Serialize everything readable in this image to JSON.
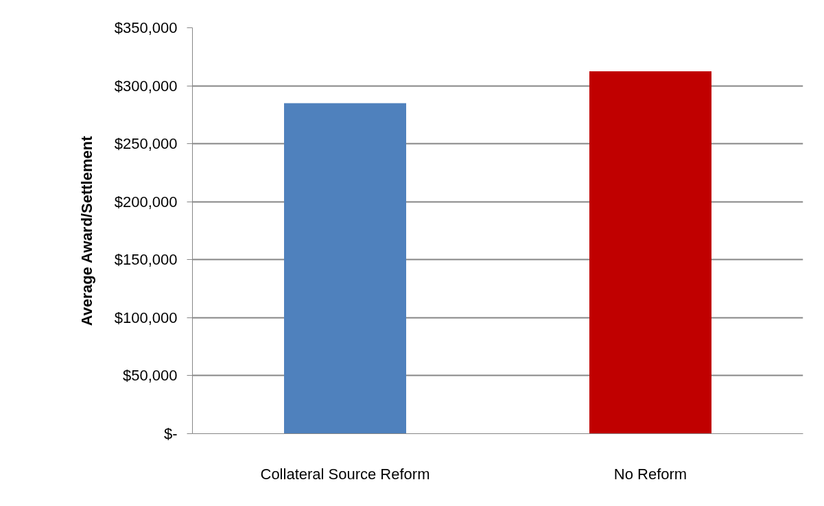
{
  "chart_data": {
    "type": "bar",
    "ylabel": "Average Award/Settlement",
    "categories": [
      "Collateral Source Reform",
      "No Reform"
    ],
    "values": [
      285000,
      312500
    ],
    "colors": [
      "#4f81bd",
      "#c00000"
    ],
    "ylim": [
      0,
      350000
    ],
    "yticks": [
      {
        "value": 0,
        "label": "$-"
      },
      {
        "value": 50000,
        "label": "$50,000"
      },
      {
        "value": 100000,
        "label": "$100,000"
      },
      {
        "value": 150000,
        "label": "$150,000"
      },
      {
        "value": 200000,
        "label": "$200,000"
      },
      {
        "value": 250000,
        "label": "$250,000"
      },
      {
        "value": 300000,
        "label": "$300,000"
      },
      {
        "value": 350000,
        "label": "$350,000"
      }
    ],
    "grid": "y"
  }
}
